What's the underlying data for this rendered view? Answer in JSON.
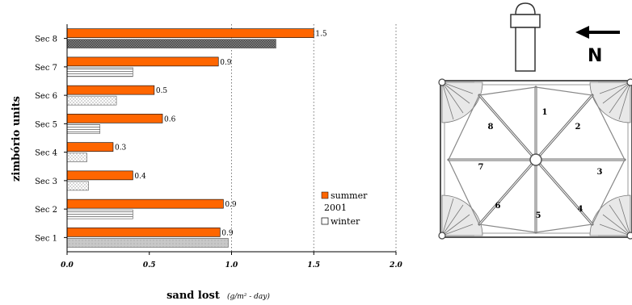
{
  "chart_data": {
    "type": "bar",
    "orientation": "horizontal",
    "categories": [
      "Sec 1",
      "Sec 2",
      "Sec 3",
      "Sec 4",
      "Sec 5",
      "Sec 6",
      "Sec 7",
      "Sec 8"
    ],
    "series": [
      {
        "name": "summer",
        "color": "#ff6600",
        "values": [
          0.93,
          0.95,
          0.4,
          0.28,
          0.58,
          0.53,
          0.92,
          1.5
        ],
        "labels": [
          "0.9",
          "0.9",
          "0.4",
          "0.3",
          "0.6",
          "0.5",
          "0.9",
          "1.5"
        ]
      },
      {
        "name": "winter",
        "color": "#ffffff",
        "values": [
          0.98,
          0.4,
          0.13,
          0.12,
          0.2,
          0.3,
          0.4,
          1.27
        ],
        "patterns": [
          "gray",
          "lines",
          "dots",
          "dots",
          "lines",
          "dots",
          "lines",
          "checker"
        ]
      }
    ],
    "legend_year": "2001",
    "xlabel": "sand lost",
    "xlabel_unit": "(g/m² - day)",
    "ylabel": "zimbório units",
    "xlim": [
      0,
      2.0
    ],
    "xticks": [
      "0.0",
      "0.5",
      "1.0",
      "1.5",
      "2.0"
    ],
    "xtick_values": [
      0,
      0.5,
      1.0,
      1.5,
      2.0
    ],
    "dashed_gridlines": [
      1.0,
      1.5,
      2.0
    ],
    "legend_position": "right"
  },
  "plan": {
    "north_label": "N",
    "sections": [
      "1",
      "2",
      "3",
      "4",
      "5",
      "6",
      "7",
      "8"
    ]
  }
}
